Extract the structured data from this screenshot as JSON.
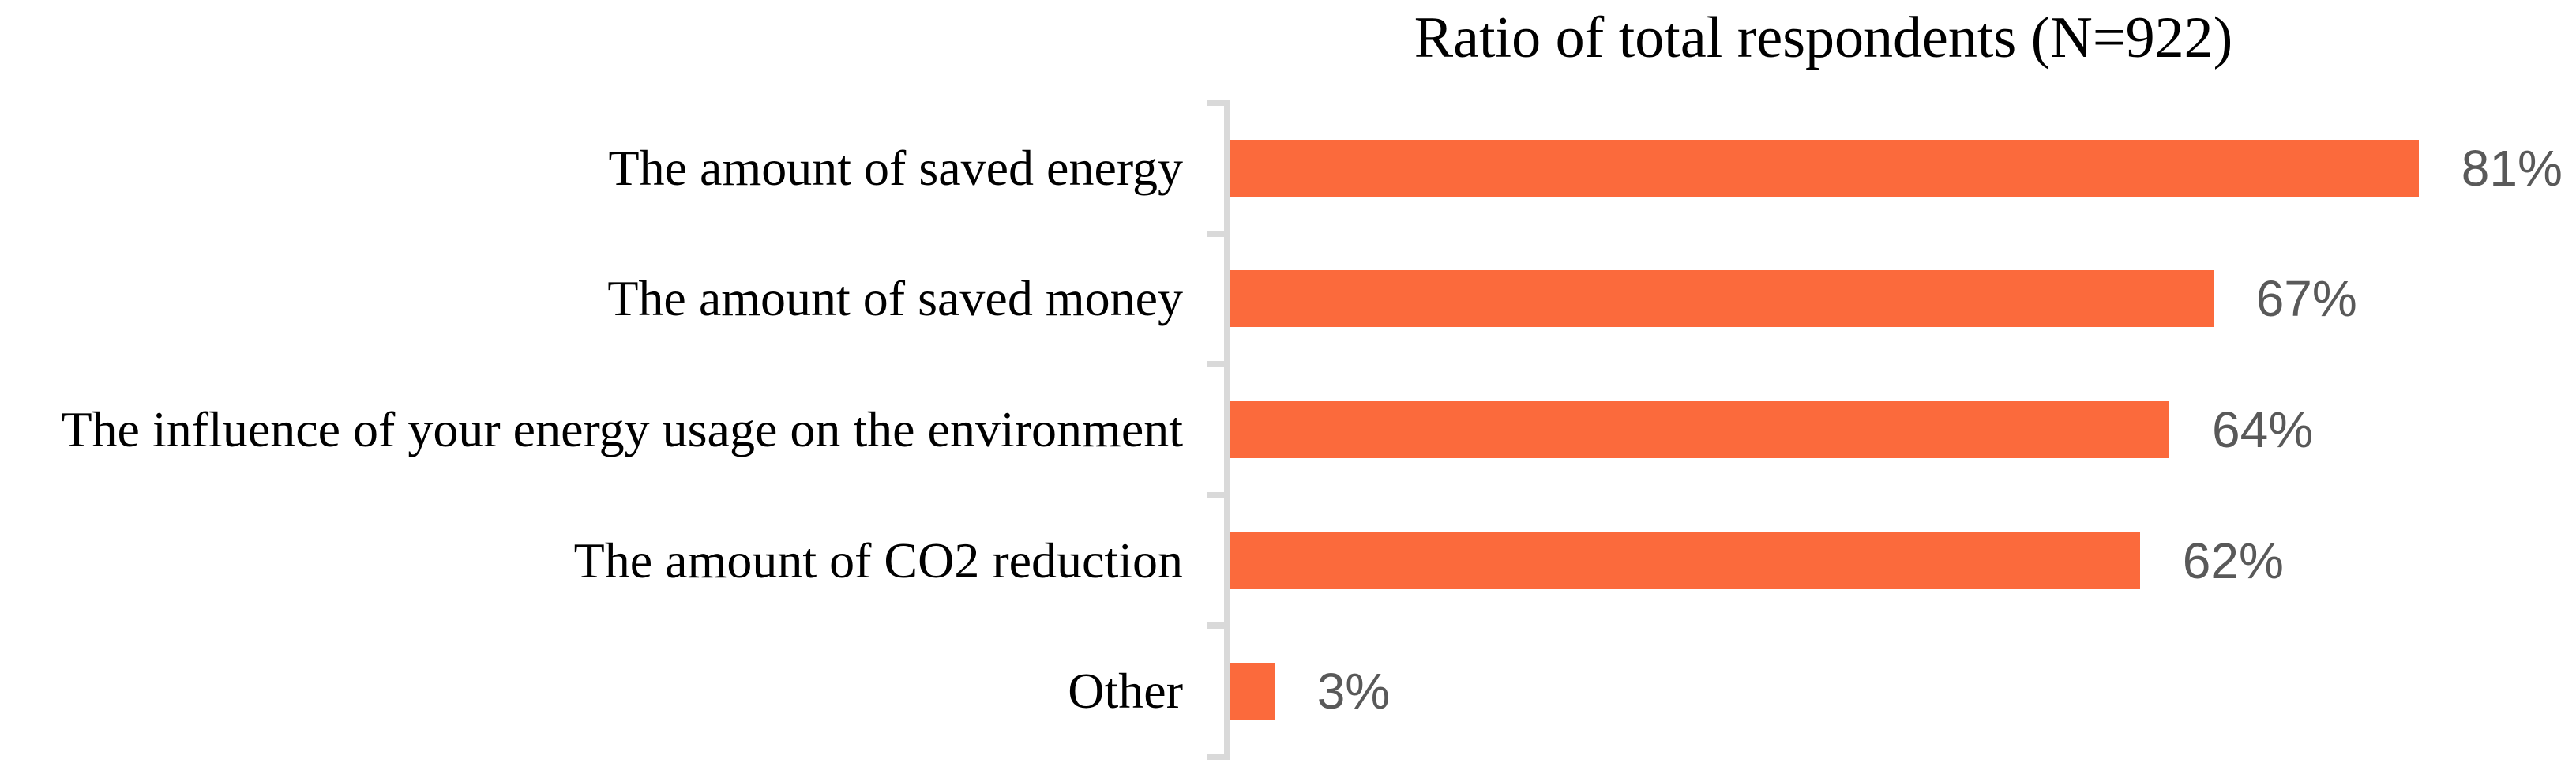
{
  "chart_data": {
    "type": "bar",
    "orientation": "horizontal",
    "title": "Ratio of total respondents (N=922)",
    "categories": [
      "The amount of saved energy",
      "The amount of saved money",
      "The influence of your energy usage on the environment",
      "The amount of CO2 reduction",
      "Other"
    ],
    "values": [
      81,
      67,
      64,
      62,
      3
    ],
    "value_labels": [
      "81%",
      "67%",
      "64%",
      "62%",
      "3%"
    ],
    "xlabel": "",
    "ylabel": "",
    "xlim": [
      0,
      90
    ],
    "grid": false,
    "legend": false,
    "value_label_position": "outside-end"
  },
  "colors": {
    "bar": "#FB6A3C",
    "value_label": "#595959",
    "axis_line": "#D9D9D9",
    "category_label": "#000000",
    "background": "#FFFFFF"
  }
}
